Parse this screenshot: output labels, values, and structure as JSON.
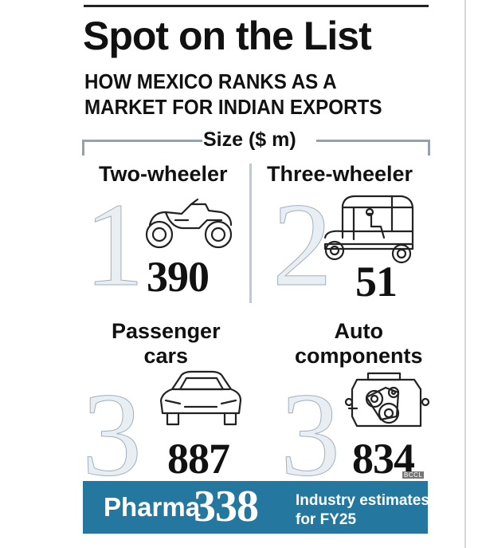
{
  "title": "Spot on the List",
  "subtitle_line1": "HOW MEXICO RANKS AS A",
  "subtitle_line2": "MARKET FOR INDIAN EXPORTS",
  "size_label": "Size ($ m)",
  "items": [
    {
      "category": "Two-wheeler",
      "rank": "1",
      "value": "390",
      "icon": "motorcycle-icon"
    },
    {
      "category": "Three-wheeler",
      "rank": "2",
      "value": "51",
      "icon": "auto-rickshaw-icon"
    },
    {
      "category_line1": "Passenger",
      "category_line2": "cars",
      "rank": "3",
      "value": "887",
      "icon": "car-icon"
    },
    {
      "category_line1": "Auto",
      "category_line2": "components",
      "rank": "3",
      "value": "834",
      "icon": "engine-icon"
    }
  ],
  "footer": {
    "label": "Pharma",
    "value": "338",
    "note_line1": "Industry estimates",
    "note_line2": "for FY25"
  },
  "source": "BCCL",
  "colors": {
    "footer_bg": "#2478a0",
    "rank_numeral": "#b3c2cf",
    "bracket": "#8fa3b6"
  }
}
